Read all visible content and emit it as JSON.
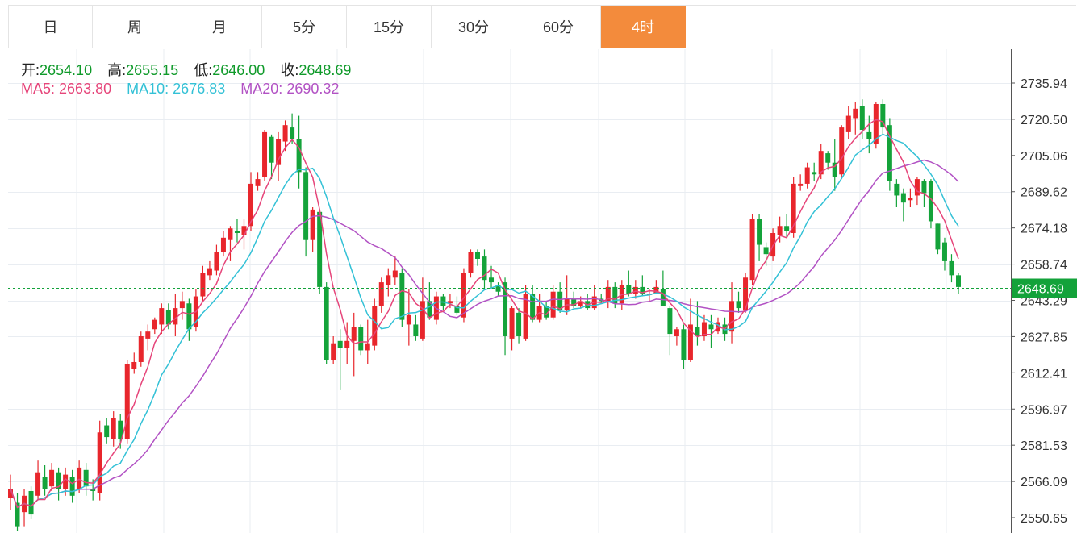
{
  "tabs": [
    {
      "label": "日",
      "active": false
    },
    {
      "label": "周",
      "active": false
    },
    {
      "label": "月",
      "active": false
    },
    {
      "label": "5分",
      "active": false
    },
    {
      "label": "15分",
      "active": false
    },
    {
      "label": "30分",
      "active": false
    },
    {
      "label": "60分",
      "active": false
    },
    {
      "label": "4时",
      "active": true
    }
  ],
  "ohlc": {
    "open_label": "开:",
    "open": "2654.10",
    "high_label": "高:",
    "high": "2655.15",
    "low_label": "低:",
    "low": "2646.00",
    "close_label": "收:",
    "close": "2648.69"
  },
  "ma": {
    "ma5_label": "MA5:",
    "ma5": "2663.80",
    "ma10_label": "MA10:",
    "ma10": "2676.83",
    "ma20_label": "MA20:",
    "ma20": "2690.32"
  },
  "colors": {
    "up": "#e8262c",
    "down": "#14a33a",
    "ma5": "#e6457a",
    "ma10": "#33c1d6",
    "ma20": "#b252c4",
    "accent": "#f38b3c",
    "price_tag": "#13a23a"
  },
  "chart_data": {
    "type": "candlestick",
    "y_ticks": [
      "2735.94",
      "2720.50",
      "2705.06",
      "2689.62",
      "2674.18",
      "2658.74",
      "2643.29",
      "2627.85",
      "2612.41",
      "2596.97",
      "2581.53",
      "2566.09",
      "2550.65"
    ],
    "ylim": [
      2547,
      2757
    ],
    "current_price": "2648.69",
    "grid": true,
    "candles": [
      [
        2559,
        2563,
        2554,
        2569
      ],
      [
        2557,
        2547,
        2545,
        2561
      ],
      [
        2553,
        2560,
        2547,
        2563
      ],
      [
        2562,
        2552,
        2550,
        2564
      ],
      [
        2560,
        2570,
        2558,
        2575
      ],
      [
        2568,
        2563,
        2560,
        2573
      ],
      [
        2564,
        2571,
        2562,
        2574
      ],
      [
        2570,
        2563,
        2558,
        2572
      ],
      [
        2563,
        2569,
        2560,
        2572
      ],
      [
        2568,
        2560,
        2557,
        2571
      ],
      [
        2563,
        2572,
        2561,
        2575
      ],
      [
        2571,
        2564,
        2560,
        2574
      ],
      [
        2563,
        2562,
        2558,
        2567
      ],
      [
        2561,
        2587,
        2558,
        2592
      ],
      [
        2590,
        2585,
        2582,
        2593
      ],
      [
        2584,
        2593,
        2581,
        2596
      ],
      [
        2592,
        2584,
        2580,
        2595
      ],
      [
        2584,
        2616,
        2582,
        2618
      ],
      [
        2614,
        2617,
        2612,
        2621
      ],
      [
        2617,
        2628,
        2615,
        2630
      ],
      [
        2627,
        2630,
        2622,
        2633
      ],
      [
        2631,
        2635,
        2629,
        2636
      ],
      [
        2633,
        2640,
        2629,
        2642
      ],
      [
        2639,
        2633,
        2631,
        2642
      ],
      [
        2633,
        2640,
        2628,
        2646
      ],
      [
        2640,
        2643,
        2635,
        2647
      ],
      [
        2642,
        2631,
        2626,
        2644
      ],
      [
        2632,
        2645,
        2630,
        2648
      ],
      [
        2645,
        2655,
        2643,
        2658
      ],
      [
        2654,
        2657,
        2652,
        2660
      ],
      [
        2656,
        2664,
        2654,
        2667
      ],
      [
        2664,
        2670,
        2662,
        2673
      ],
      [
        2669,
        2674,
        2660,
        2675
      ],
      [
        2673,
        2672,
        2668,
        2678
      ],
      [
        2671,
        2675,
        2665,
        2678
      ],
      [
        2675,
        2693,
        2673,
        2698
      ],
      [
        2692,
        2695,
        2690,
        2698
      ],
      [
        2696,
        2715,
        2694,
        2716
      ],
      [
        2713,
        2702,
        2695,
        2714
      ],
      [
        2701,
        2712,
        2694,
        2715
      ],
      [
        2711,
        2718,
        2707,
        2720
      ],
      [
        2717,
        2712,
        2710,
        2723
      ],
      [
        2712,
        2698,
        2691,
        2722
      ],
      [
        2698,
        2669,
        2662,
        2700
      ],
      [
        2669,
        2682,
        2664,
        2683
      ],
      [
        2681,
        2649,
        2646,
        2682
      ],
      [
        2649,
        2618,
        2616,
        2651
      ],
      [
        2618,
        2625,
        2616,
        2628
      ],
      [
        2626,
        2623,
        2605,
        2631
      ],
      [
        2623,
        2626,
        2616,
        2634
      ],
      [
        2626,
        2632,
        2611,
        2638
      ],
      [
        2632,
        2622,
        2620,
        2633
      ],
      [
        2622,
        2625,
        2616,
        2635
      ],
      [
        2624,
        2641,
        2622,
        2644
      ],
      [
        2641,
        2651,
        2638,
        2653
      ],
      [
        2650,
        2654,
        2645,
        2657
      ],
      [
        2653,
        2656,
        2650,
        2662
      ],
      [
        2655,
        2635,
        2632,
        2657
      ],
      [
        2633,
        2637,
        2624,
        2648
      ],
      [
        2633,
        2628,
        2626,
        2637
      ],
      [
        2627,
        2643,
        2626,
        2653
      ],
      [
        2643,
        2636,
        2635,
        2651
      ],
      [
        2635,
        2645,
        2633,
        2647
      ],
      [
        2645,
        2641,
        2639,
        2646
      ],
      [
        2642,
        2643,
        2640,
        2646
      ],
      [
        2641,
        2638,
        2637,
        2645
      ],
      [
        2636,
        2655,
        2634,
        2657
      ],
      [
        2655,
        2664,
        2653,
        2665
      ],
      [
        2664,
        2661,
        2658,
        2665
      ],
      [
        2662,
        2652,
        2648,
        2665
      ],
      [
        2653,
        2651,
        2648,
        2658
      ],
      [
        2650,
        2647,
        2645,
        2651
      ],
      [
        2651,
        2628,
        2620,
        2653
      ],
      [
        2627,
        2640,
        2622,
        2641
      ],
      [
        2638,
        2628,
        2625,
        2640
      ],
      [
        2627,
        2646,
        2626,
        2650
      ],
      [
        2646,
        2635,
        2634,
        2650
      ],
      [
        2635,
        2641,
        2634,
        2646
      ],
      [
        2641,
        2636,
        2635,
        2643
      ],
      [
        2636,
        2647,
        2635,
        2650
      ],
      [
        2647,
        2639,
        2638,
        2651
      ],
      [
        2639,
        2644,
        2637,
        2654
      ],
      [
        2644,
        2641,
        2640,
        2647
      ],
      [
        2641,
        2643,
        2640,
        2645
      ],
      [
        2643,
        2640,
        2639,
        2646
      ],
      [
        2640,
        2645,
        2639,
        2650
      ],
      [
        2644,
        2643,
        2642,
        2646
      ],
      [
        2643,
        2649,
        2640,
        2652
      ],
      [
        2649,
        2642,
        2640,
        2651
      ],
      [
        2642,
        2650,
        2639,
        2652
      ],
      [
        2650,
        2646,
        2645,
        2656
      ],
      [
        2646,
        2649,
        2644,
        2652
      ],
      [
        2649,
        2646,
        2645,
        2654
      ],
      [
        2646,
        2646,
        2643,
        2648
      ],
      [
        2646,
        2649,
        2646,
        2652
      ],
      [
        2648,
        2641,
        2642,
        2656
      ],
      [
        2640,
        2629,
        2620,
        2641
      ],
      [
        2628,
        2631,
        2624,
        2632
      ],
      [
        2631,
        2618,
        2614,
        2633
      ],
      [
        2618,
        2633,
        2617,
        2644
      ],
      [
        2632,
        2628,
        2624,
        2643
      ],
      [
        2628,
        2634,
        2626,
        2637
      ],
      [
        2633,
        2631,
        2623,
        2637
      ],
      [
        2630,
        2634,
        2629,
        2636
      ],
      [
        2633,
        2629,
        2626,
        2636
      ],
      [
        2630,
        2643,
        2625,
        2651
      ],
      [
        2643,
        2640,
        2638,
        2647
      ],
      [
        2639,
        2653,
        2638,
        2655
      ],
      [
        2652,
        2678,
        2650,
        2680
      ],
      [
        2678,
        2667,
        2660,
        2680
      ],
      [
        2666,
        2663,
        2658,
        2668
      ],
      [
        2662,
        2672,
        2660,
        2674
      ],
      [
        2671,
        2675,
        2668,
        2679
      ],
      [
        2675,
        2673,
        2670,
        2680
      ],
      [
        2672,
        2693,
        2670,
        2696
      ],
      [
        2692,
        2693,
        2690,
        2697
      ],
      [
        2693,
        2700,
        2691,
        2702
      ],
      [
        2698,
        2697,
        2694,
        2702
      ],
      [
        2697,
        2707,
        2695,
        2710
      ],
      [
        2706,
        2702,
        2699,
        2707
      ],
      [
        2702,
        2696,
        2690,
        2712
      ],
      [
        2697,
        2717,
        2695,
        2718
      ],
      [
        2715,
        2722,
        2712,
        2726
      ],
      [
        2721,
        2725,
        2714,
        2728
      ],
      [
        2726,
        2716,
        2712,
        2729
      ],
      [
        2715,
        2712,
        2706,
        2722
      ],
      [
        2710,
        2727,
        2708,
        2728
      ],
      [
        2727,
        2717,
        2714,
        2729
      ],
      [
        2718,
        2694,
        2690,
        2721
      ],
      [
        2693,
        2688,
        2683,
        2695
      ],
      [
        2689,
        2685,
        2677,
        2691
      ],
      [
        2686,
        2687,
        2683,
        2691
      ],
      [
        2688,
        2695,
        2684,
        2696
      ],
      [
        2694,
        2689,
        2683,
        2695
      ],
      [
        2694,
        2677,
        2674,
        2695
      ],
      [
        2676,
        2665,
        2663,
        2676
      ],
      [
        2668,
        2660,
        2656,
        2670
      ],
      [
        2660,
        2654,
        2651,
        2663
      ],
      [
        2654,
        2649,
        2646,
        2655
      ]
    ]
  }
}
